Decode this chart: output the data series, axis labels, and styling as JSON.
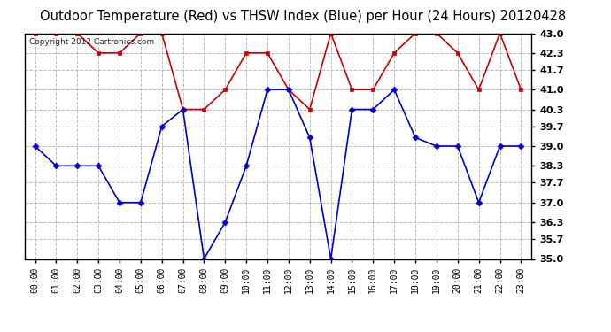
{
  "title": "Outdoor Temperature (Red) vs THSW Index (Blue) per Hour (24 Hours) 20120428",
  "copyright": "Copyright 2012 Cartronics.com",
  "hours": [
    "00:00",
    "01:00",
    "02:00",
    "03:00",
    "04:00",
    "05:00",
    "06:00",
    "07:00",
    "08:00",
    "09:00",
    "10:00",
    "11:00",
    "12:00",
    "13:00",
    "14:00",
    "15:00",
    "16:00",
    "17:00",
    "18:00",
    "19:00",
    "20:00",
    "21:00",
    "22:00",
    "23:00"
  ],
  "red_data": [
    43.0,
    43.0,
    43.0,
    42.3,
    42.3,
    43.0,
    43.0,
    40.3,
    40.3,
    41.0,
    42.3,
    42.3,
    41.0,
    40.3,
    43.0,
    41.0,
    41.0,
    42.3,
    43.0,
    43.0,
    42.3,
    41.0,
    43.0,
    41.0
  ],
  "blue_data": [
    39.0,
    38.3,
    38.3,
    38.3,
    37.0,
    37.0,
    39.7,
    40.3,
    35.0,
    36.3,
    38.3,
    41.0,
    41.0,
    39.3,
    35.0,
    40.3,
    40.3,
    41.0,
    39.3,
    39.0,
    39.0,
    37.0,
    39.0,
    39.0
  ],
  "ylim": [
    35.0,
    43.0
  ],
  "yticks": [
    35.0,
    35.7,
    36.3,
    37.0,
    37.7,
    38.3,
    39.0,
    39.7,
    40.3,
    41.0,
    41.7,
    42.3,
    43.0
  ],
  "bg_color": "#ffffff",
  "grid_color": "#aaaaaa",
  "red_color": "#cc0000",
  "blue_color": "#0000cc",
  "title_fontsize": 10.5,
  "copyright_fontsize": 6.5
}
